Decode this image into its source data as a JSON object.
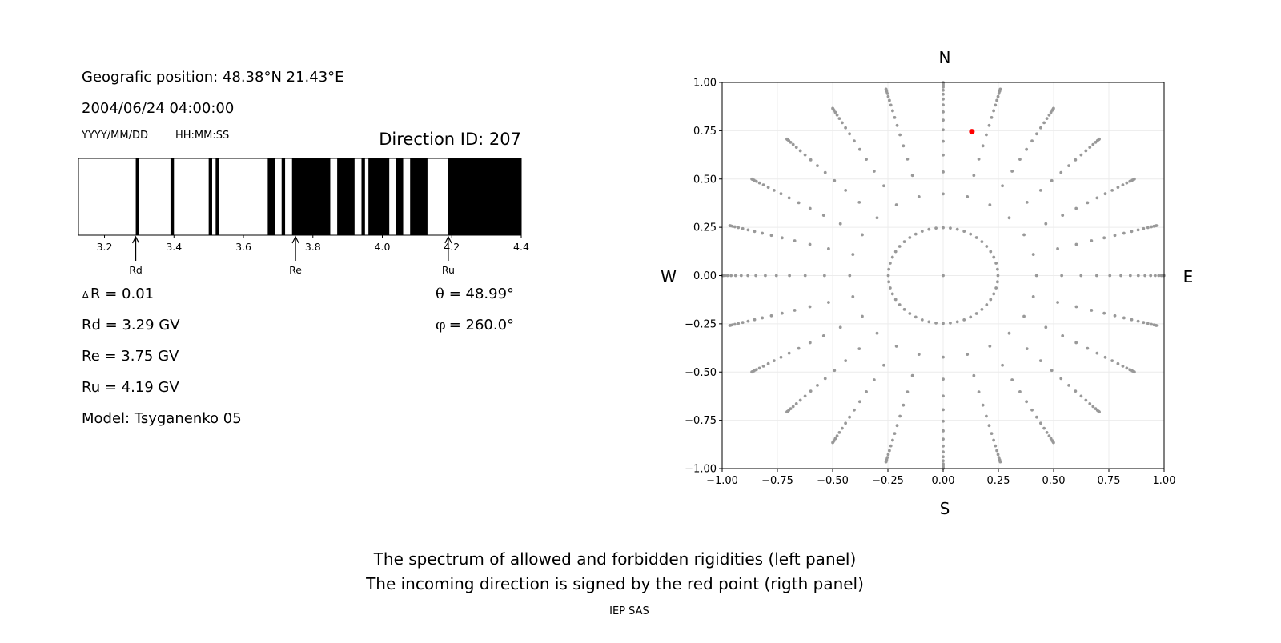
{
  "left_panel": {
    "geo_position": "Geografic position: 48.38°N 21.43°E",
    "datetime": "2004/06/24 04:00:00",
    "date_format": "YYYY/MM/DD",
    "time_format": "HH:MM:SS",
    "direction_id": "Direction ID: 207",
    "delta_r_symbol": "Δ",
    "delta_r": "R = 0.01",
    "rd": "Rd = 3.29 GV",
    "re": "Re = 3.75 GV",
    "ru": "Ru = 4.19 GV",
    "model": "Model: Tsyganenko 05",
    "theta_symbol": "θ",
    "theta": " = 48.99°",
    "phi_symbol": "φ",
    "phi": " = 260.0°"
  },
  "footer": {
    "line1": "The spectrum of allowed and forbidden rigidities (left panel)",
    "line2": "The incoming direction is signed by the red point (rigth panel)",
    "credit": "IEP SAS"
  },
  "chart_data": [
    {
      "type": "bar",
      "xlim": [
        3.125,
        4.4
      ],
      "xticks": [
        "3.2",
        "3.4",
        "3.6",
        "3.8",
        "4.0",
        "4.2",
        "4.4"
      ],
      "xtick_values": [
        3.2,
        3.4,
        3.6,
        3.8,
        4.0,
        4.2,
        4.4
      ],
      "forbidden_bands": [
        [
          3.29,
          3.3
        ],
        [
          3.39,
          3.4
        ],
        [
          3.5,
          3.51
        ],
        [
          3.52,
          3.53
        ],
        [
          3.67,
          3.69
        ],
        [
          3.71,
          3.72
        ],
        [
          3.74,
          3.85
        ],
        [
          3.87,
          3.92
        ],
        [
          3.94,
          3.95
        ],
        [
          3.96,
          4.02
        ],
        [
          4.04,
          4.06
        ],
        [
          4.08,
          4.13
        ],
        [
          4.19,
          4.4
        ]
      ],
      "markers": [
        {
          "label": "Rd",
          "value": 3.29
        },
        {
          "label": "Re",
          "value": 3.75
        },
        {
          "label": "Ru",
          "value": 4.19
        }
      ],
      "colors": {
        "forbidden": "#000000",
        "allowed": "#ffffff"
      }
    },
    {
      "type": "scatter",
      "xlim": [
        -1,
        1
      ],
      "ylim": [
        -1,
        1
      ],
      "xticks": [
        "−1.00",
        "−0.75",
        "−0.50",
        "−0.25",
        "0.00",
        "0.25",
        "0.50",
        "0.75",
        "1.00"
      ],
      "yticks": [
        "−1.00",
        "−0.75",
        "−0.50",
        "−0.25",
        "0.00",
        "0.25",
        "0.50",
        "0.75",
        "1.00"
      ],
      "tick_values": [
        -1,
        -0.75,
        -0.5,
        -0.25,
        0,
        0.25,
        0.5,
        0.75,
        1
      ],
      "compass": {
        "north": "N",
        "south": "S",
        "west": "W",
        "east": "E"
      },
      "grid": true,
      "grid_rays_azimuth_step_deg": 15,
      "direction_point": {
        "x": 0.13,
        "y": 0.745
      },
      "colors": {
        "grid_points": "#999999",
        "direction": "#ff0000"
      }
    }
  ]
}
